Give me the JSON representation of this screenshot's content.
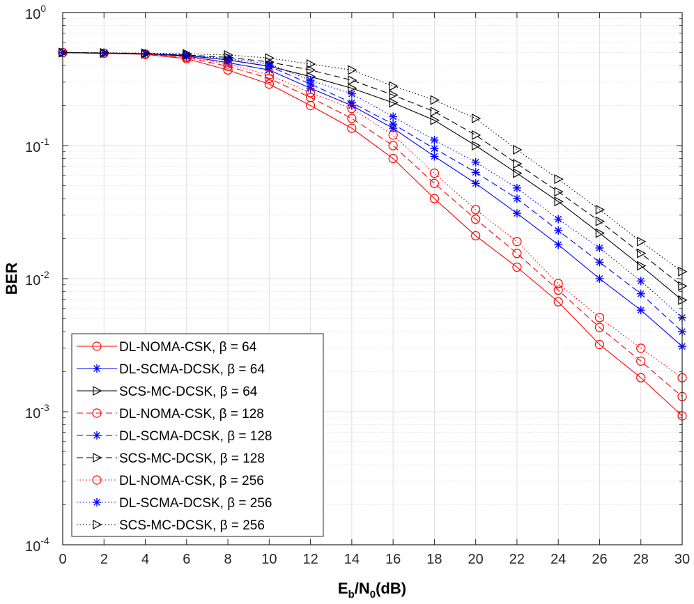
{
  "chart_data": {
    "type": "line",
    "yscale": "log",
    "xlabel": "E_b/N_0(dB)",
    "xlabel_parts": {
      "base1": "E",
      "sub1": "b",
      "sep": "/N",
      "sub2": "0",
      "rest": "(dB)"
    },
    "ylabel": "BER",
    "xlim": [
      0,
      30
    ],
    "ylim": [
      0.0001,
      1
    ],
    "grid": true,
    "legend_position": "bottom-left",
    "x_ticks": [
      0,
      2,
      4,
      6,
      8,
      10,
      12,
      14,
      16,
      18,
      20,
      22,
      24,
      26,
      28,
      30
    ],
    "y_ticks": [
      {
        "value": 1,
        "base": "10",
        "exp": "0"
      },
      {
        "value": 0.1,
        "base": "10",
        "exp": "-1"
      },
      {
        "value": 0.01,
        "base": "10",
        "exp": "-2"
      },
      {
        "value": 0.001,
        "base": "10",
        "exp": "-3"
      },
      {
        "value": 0.0001,
        "base": "10",
        "exp": "-4"
      }
    ],
    "x": [
      0,
      2,
      4,
      6,
      8,
      10,
      12,
      14,
      16,
      18,
      20,
      22,
      24,
      26,
      28,
      30
    ],
    "series": [
      {
        "name": "DL-NOMA-CSK, ",
        "beta_label": "β = 64",
        "color": "#ff0000",
        "dash": "solid",
        "marker": "circle",
        "values": [
          0.5,
          0.495,
          0.485,
          0.45,
          0.37,
          0.29,
          0.2,
          0.135,
          0.08,
          0.04,
          0.021,
          0.0122,
          0.0067,
          0.0032,
          0.0018,
          0.00093
        ]
      },
      {
        "name": "DL-SCMA-DCSK, ",
        "beta_label": "β = 64",
        "color": "#0000ff",
        "dash": "solid",
        "marker": "star",
        "values": [
          0.5,
          0.495,
          0.49,
          0.47,
          0.42,
          0.37,
          0.27,
          0.2,
          0.135,
          0.083,
          0.052,
          0.031,
          0.018,
          0.01,
          0.0058,
          0.0031
        ]
      },
      {
        "name": "SCS-MC-DCSK, ",
        "beta_label": "β = 64",
        "color": "#000000",
        "dash": "solid",
        "marker": "triangle",
        "values": [
          0.5,
          0.495,
          0.49,
          0.475,
          0.44,
          0.395,
          0.33,
          0.27,
          0.21,
          0.155,
          0.1,
          0.062,
          0.038,
          0.022,
          0.0125,
          0.0069
        ]
      },
      {
        "name": "DL-NOMA-CSK, ",
        "beta_label": "β = 128",
        "color": "#ff0000",
        "dash": "dashed",
        "marker": "circle",
        "values": [
          0.5,
          0.495,
          0.487,
          0.46,
          0.395,
          0.32,
          0.23,
          0.16,
          0.1,
          0.052,
          0.028,
          0.0155,
          0.0082,
          0.0043,
          0.0024,
          0.0013
        ]
      },
      {
        "name": "DL-SCMA-DCSK, ",
        "beta_label": "β = 128",
        "color": "#0000ff",
        "dash": "dashed",
        "marker": "star",
        "values": [
          0.5,
          0.495,
          0.49,
          0.475,
          0.44,
          0.395,
          0.29,
          0.21,
          0.145,
          0.095,
          0.063,
          0.04,
          0.023,
          0.0133,
          0.0077,
          0.004
        ]
      },
      {
        "name": "SCS-MC-DCSK, ",
        "beta_label": "β = 128",
        "color": "#000000",
        "dash": "dashed",
        "marker": "triangle",
        "values": [
          0.5,
          0.497,
          0.492,
          0.48,
          0.46,
          0.425,
          0.37,
          0.31,
          0.24,
          0.18,
          0.12,
          0.073,
          0.045,
          0.027,
          0.0155,
          0.0088
        ]
      },
      {
        "name": "DL-NOMA-CSK, ",
        "beta_label": "β = 256",
        "color": "#ff0000",
        "dash": "dotted",
        "marker": "circle",
        "values": [
          0.5,
          0.495,
          0.488,
          0.465,
          0.41,
          0.34,
          0.25,
          0.19,
          0.12,
          0.062,
          0.033,
          0.019,
          0.0092,
          0.0051,
          0.003,
          0.0018
        ]
      },
      {
        "name": "DL-SCMA-DCSK, ",
        "beta_label": "β = 256",
        "color": "#0000ff",
        "dash": "dotted",
        "marker": "star",
        "values": [
          0.5,
          0.497,
          0.492,
          0.48,
          0.45,
          0.41,
          0.31,
          0.245,
          0.165,
          0.11,
          0.075,
          0.048,
          0.028,
          0.017,
          0.0096,
          0.0051
        ]
      },
      {
        "name": "SCS-MC-DCSK, ",
        "beta_label": "β = 256",
        "color": "#000000",
        "dash": "dotted",
        "marker": "triangle",
        "values": [
          0.5,
          0.498,
          0.495,
          0.49,
          0.48,
          0.455,
          0.41,
          0.37,
          0.28,
          0.22,
          0.16,
          0.093,
          0.056,
          0.033,
          0.019,
          0.0113
        ]
      }
    ]
  }
}
